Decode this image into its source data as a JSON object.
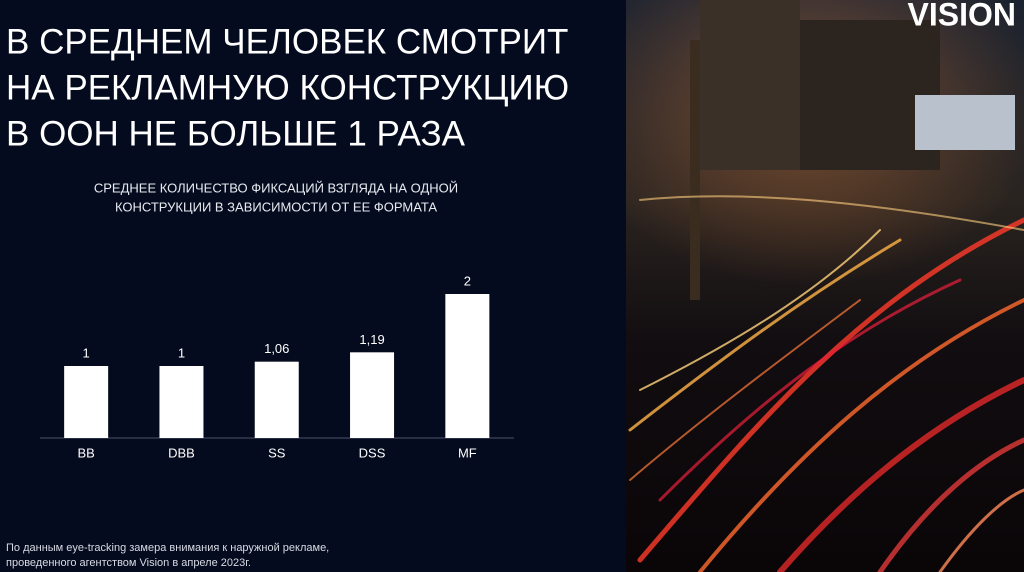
{
  "logo": "VISION",
  "chart_data": {
    "type": "bar",
    "title": [
      "В СРЕДНЕМ ЧЕЛОВЕК СМОТРИТ",
      "НА РЕКЛАМНУЮ КОНСТРУКЦИЮ",
      "В ООН НЕ БОЛЬШЕ 1 РАЗА"
    ],
    "subtitle": [
      "СРЕДНЕЕ КОЛИЧЕСТВО ФИКСАЦИЙ ВЗГЛЯДА НА ОДНОЙ",
      "КОНСТРУКЦИИ В ЗАВИСИМОСТИ ОТ ЕЕ ФОРМАТА"
    ],
    "categories": [
      "BB",
      "DBB",
      "SS",
      "DSS",
      "MF"
    ],
    "values": [
      1,
      1,
      1.06,
      1.19,
      2
    ],
    "value_labels": [
      "1",
      "1",
      "1,06",
      "1,19",
      "2"
    ],
    "color": "#ffffff",
    "note": [
      "По данным eye-tracking замера внимания к наружной рекламе,",
      "проведенного агентством Vision в апреле 2023г."
    ]
  }
}
